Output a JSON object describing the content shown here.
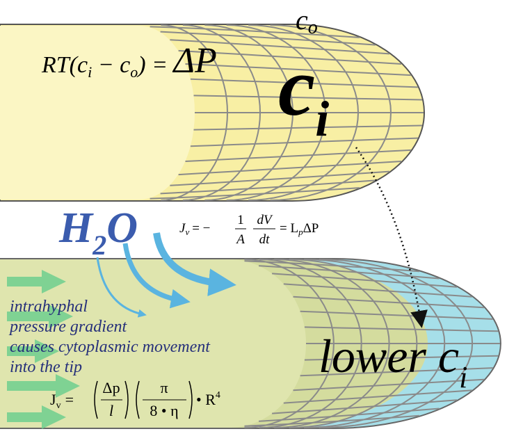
{
  "top_hypha": {
    "outside_concentration": {
      "base": "c",
      "sub": "o"
    },
    "osmotic_equation": {
      "part1": "RT(c",
      "sub1": "i",
      "part2": " − c",
      "sub2": "o",
      "part3": ") = ",
      "result": "ΔP"
    },
    "inside_concentration": {
      "base": "c",
      "sub": "i"
    }
  },
  "water": {
    "h": "H",
    "sub": "2",
    "o": "O"
  },
  "flux_equation": {
    "j": "J",
    "j_sub": "v",
    "eq": "= −",
    "num1": "1",
    "den1": "A",
    "num2": "dV",
    "den2": "dt",
    "rhs": "= L",
    "rhs_sub": "p",
    "rhs_end": "ΔP"
  },
  "bottom_hypha": {
    "gradient_text": [
      "intrahyphal",
      "pressure gradient",
      "causes cytoplasmic movement",
      "into the tip"
    ],
    "poiseuille_equation": {
      "j": "J",
      "j_sub": "v",
      "eq": "=",
      "num1": "Δp",
      "den1": "l",
      "num2": "π",
      "den2": "8 • η",
      "tail": "• R",
      "power": "4"
    },
    "lower_concentration": {
      "base": "lower c",
      "sub": "i"
    }
  }
}
